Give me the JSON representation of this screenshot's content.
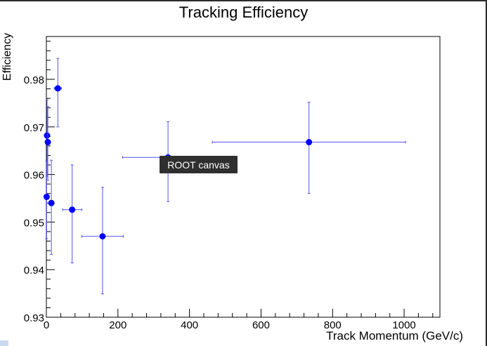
{
  "chart_data": {
    "type": "scatter",
    "title": "Tracking Efficiency",
    "xlabel": "Track Momentum (GeV/c)",
    "ylabel": "Efficiency",
    "xlim": [
      0,
      1100
    ],
    "ylim": [
      0.93,
      0.989
    ],
    "xticks": [
      0,
      200,
      400,
      600,
      800,
      1000
    ],
    "yticks": [
      0.93,
      0.94,
      0.95,
      0.96,
      0.97,
      0.98
    ],
    "ytick_labels": [
      "0.93",
      "0.94",
      "0.95",
      "0.96",
      "0.97",
      "0.98"
    ],
    "grid": false,
    "marker_color": "#0000ff",
    "errorbar_color": "#5555ee",
    "points": [
      {
        "x": 0.8,
        "y": 0.9553,
        "xerr": 0.6,
        "yerr_low": 0.0088,
        "yerr_high": 0.0075
      },
      {
        "x": 1.8,
        "y": 0.9682,
        "xerr": 0.8,
        "yerr_low": 0.0086,
        "yerr_high": 0.0075
      },
      {
        "x": 4.0,
        "y": 0.9668,
        "xerr": 1.5,
        "yerr_low": 0.008,
        "yerr_high": 0.0075
      },
      {
        "x": 14.0,
        "y": 0.954,
        "xerr": 5.0,
        "yerr_low": 0.0108,
        "yerr_high": 0.009
      },
      {
        "x": 32.0,
        "y": 0.9781,
        "xerr": 10.0,
        "yerr_low": 0.0081,
        "yerr_high": 0.0063
      },
      {
        "x": 72.0,
        "y": 0.9526,
        "xerr": 27.0,
        "yerr_low": 0.0112,
        "yerr_high": 0.0094
      },
      {
        "x": 157.0,
        "y": 0.947,
        "xerr": 58.0,
        "yerr_low": 0.0121,
        "yerr_high": 0.0103
      },
      {
        "x": 340.0,
        "y": 0.9636,
        "xerr": 127.0,
        "yerr_low": 0.0093,
        "yerr_high": 0.0075
      },
      {
        "x": 734.0,
        "y": 0.9668,
        "xerr": 270.0,
        "yerr_low": 0.0108,
        "yerr_high": 0.0084
      }
    ]
  },
  "tooltip": {
    "label": "ROOT canvas"
  }
}
